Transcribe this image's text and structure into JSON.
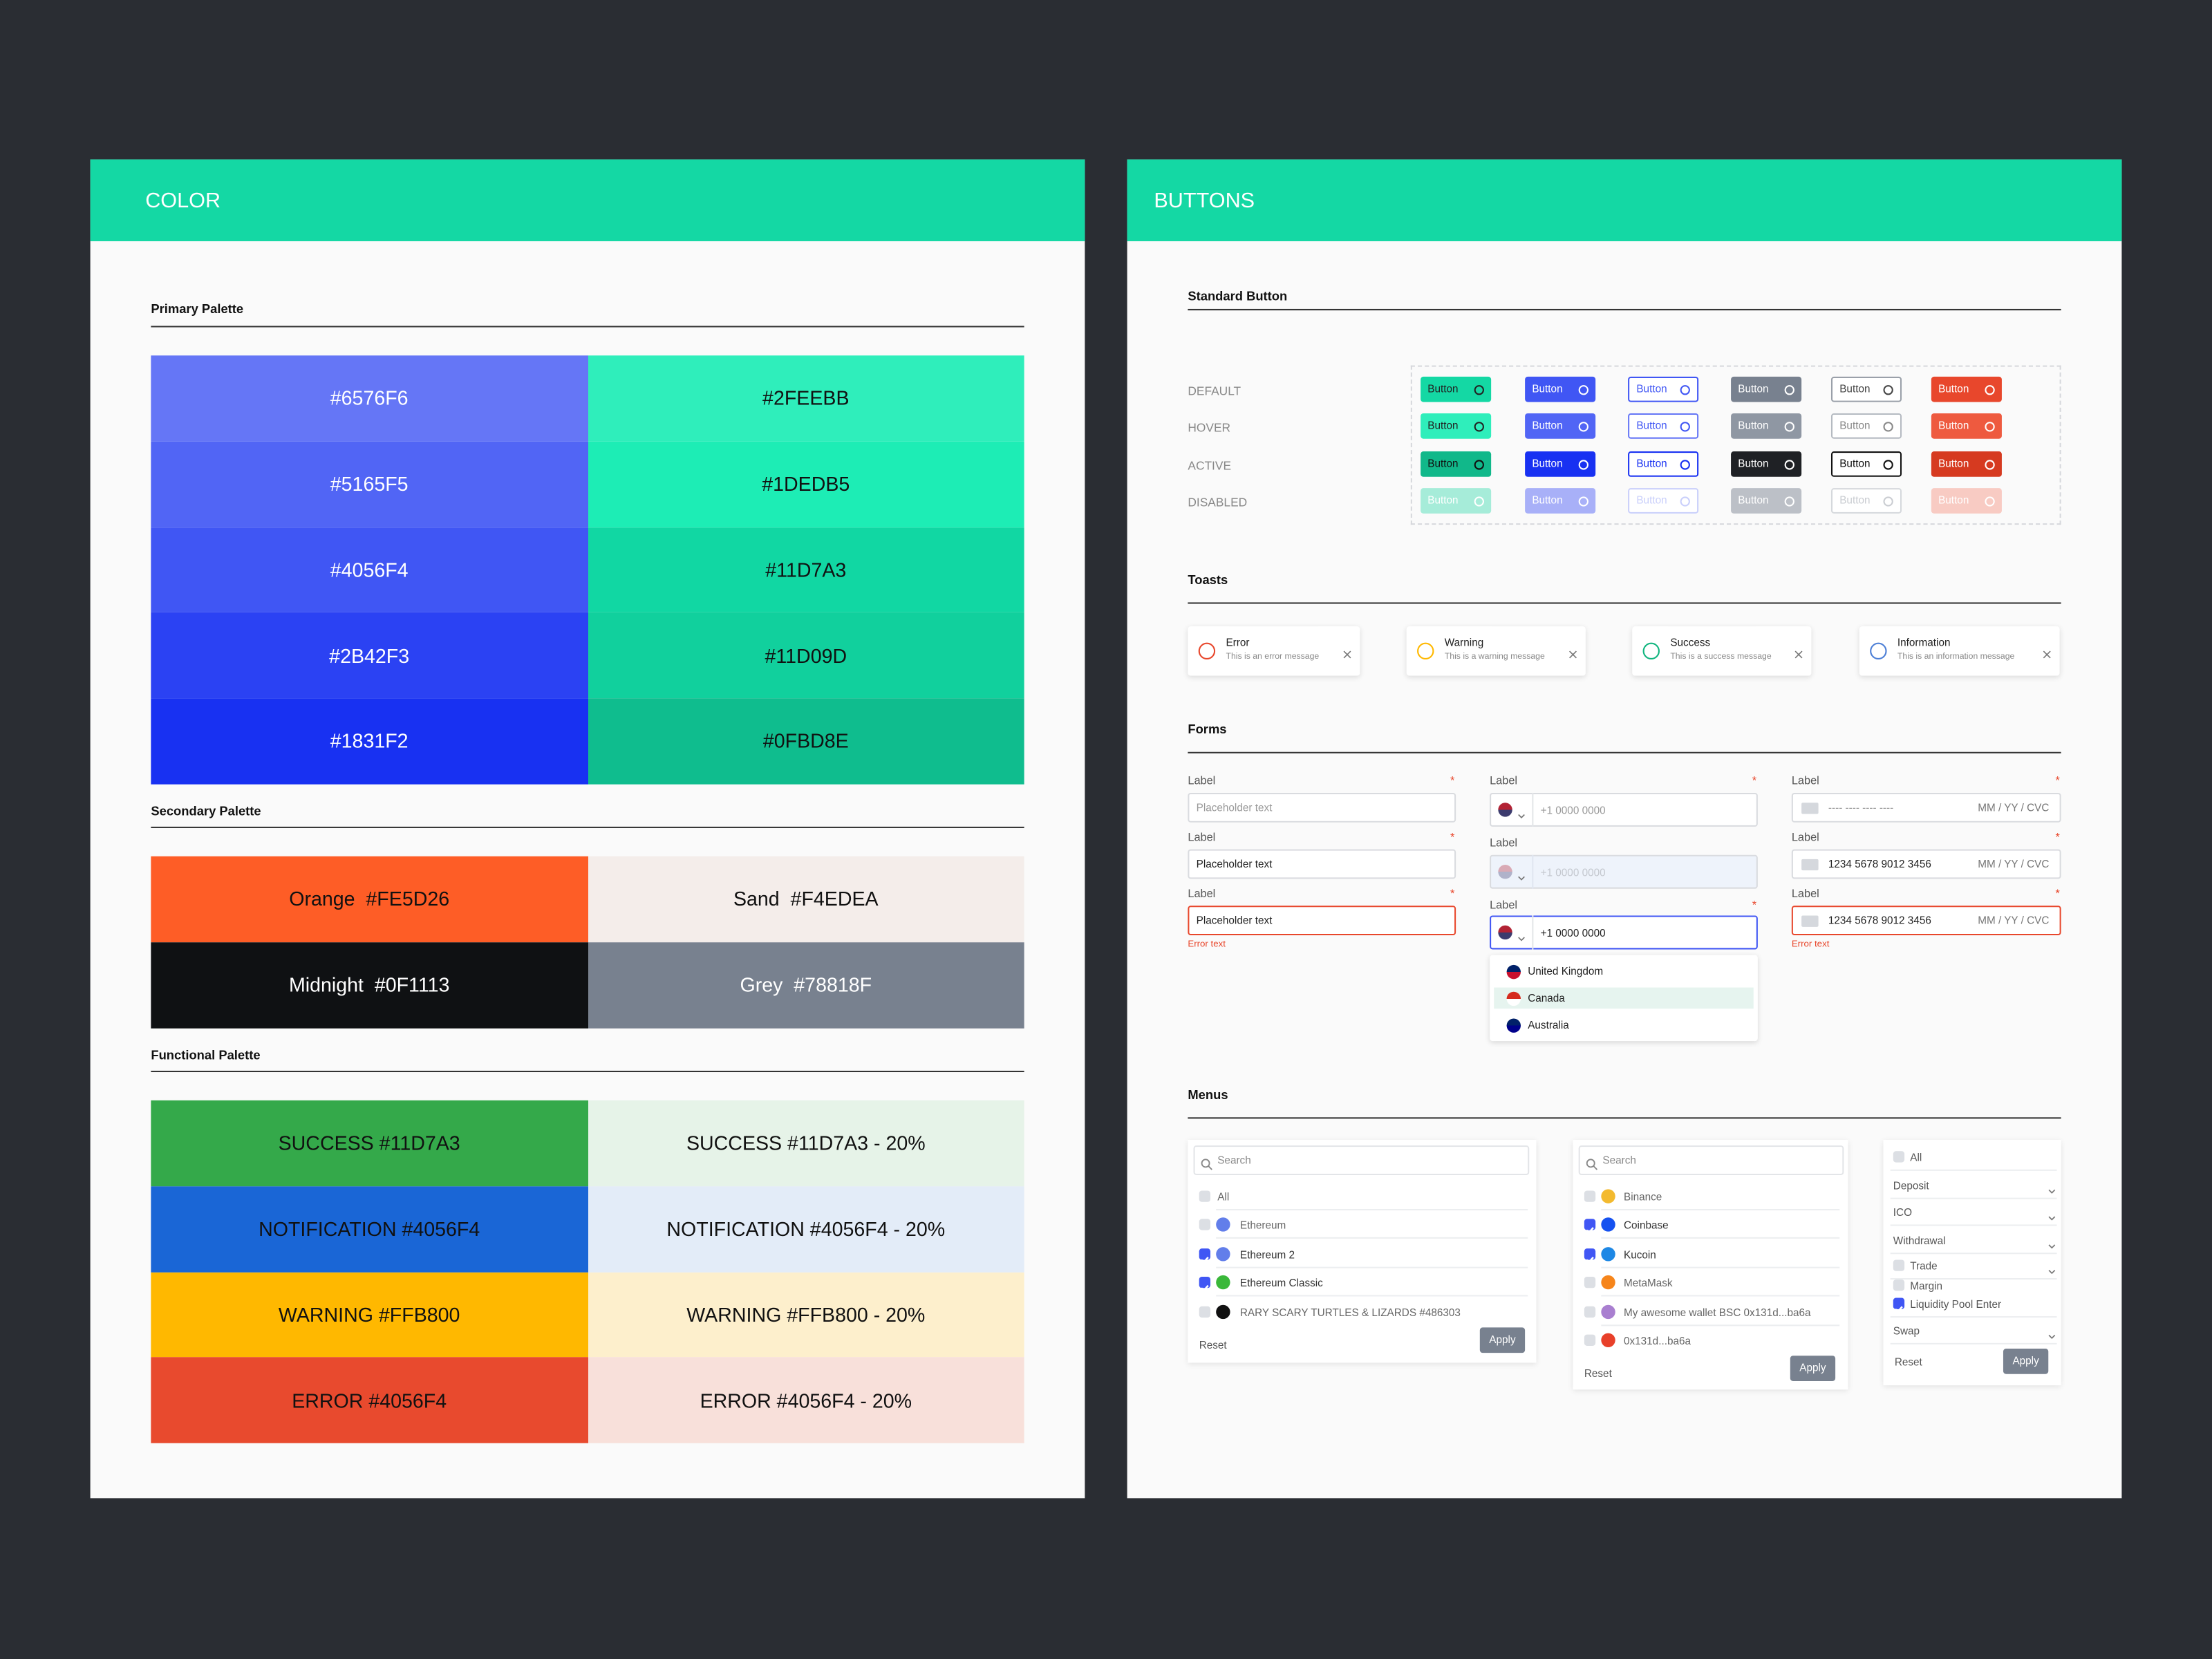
{
  "color_panel": {
    "title": "COLOR",
    "sections": [
      {
        "heading": "Primary Palette",
        "swatches": [
          {
            "label": "#6576F6",
            "color": "#6576F6",
            "text_color": "#ffffff"
          },
          {
            "label": "#2FEEBB",
            "color": "#2FEEBB",
            "text_color": "#111111"
          },
          {
            "label": "#5165F5",
            "color": "#5165F5",
            "text_color": "#ffffff"
          },
          {
            "label": "#1DEDB5",
            "color": "#1DEDB5",
            "text_color": "#111111"
          },
          {
            "label": "#4056F4",
            "color": "#4056F4",
            "text_color": "#ffffff"
          },
          {
            "label": "#11D7A3",
            "color": "#11D7A3",
            "text_color": "#111111"
          },
          {
            "label": "#2B42F3",
            "color": "#2B42F3",
            "text_color": "#ffffff"
          },
          {
            "label": "#11D09D",
            "color": "#11D09D",
            "text_color": "#111111"
          },
          {
            "label": "#1831F2",
            "color": "#1831F2",
            "text_color": "#ffffff"
          },
          {
            "label": "#0FBD8E",
            "color": "#0FBD8E",
            "text_color": "#111111"
          }
        ]
      },
      {
        "heading": "Secondary Palette",
        "swatches": [
          {
            "label": "Orange  #FE5D26",
            "color": "#FE5D26",
            "text_color": "#111111"
          },
          {
            "label": "Sand  #F4EDEA",
            "color": "#F4EDEA",
            "text_color": "#111111"
          },
          {
            "label": "Midnight  #0F1113",
            "color": "#0F1113",
            "text_color": "#ffffff"
          },
          {
            "label": "Grey  #78818F",
            "color": "#78818F",
            "text_color": "#ffffff"
          }
        ]
      },
      {
        "heading": "Functional Palette",
        "swatches": [
          {
            "label": "SUCCESS #11D7A3",
            "color": "#34A94A",
            "text_color": "#111111"
          },
          {
            "label": "SUCCESS #11D7A3 - 20%",
            "color": "#E6F3E8",
            "text_color": "#111111"
          },
          {
            "label": "NOTIFICATION #4056F4",
            "color": "#1A66D6",
            "text_color": "#111111"
          },
          {
            "label": "NOTIFICATION #4056F4 - 20%",
            "color": "#E3ECF8",
            "text_color": "#111111"
          },
          {
            "label": "WARNING #FFB800",
            "color": "#FFB800",
            "text_color": "#111111"
          },
          {
            "label": "WARNING #FFB800 - 20%",
            "color": "#FDEFCC",
            "text_color": "#111111"
          },
          {
            "label": "ERROR #4056F4",
            "color": "#E84A2E",
            "text_color": "#111111"
          },
          {
            "label": "ERROR #4056F4 - 20%",
            "color": "#F8E0DA",
            "text_color": "#111111"
          }
        ]
      }
    ]
  },
  "buttons_panel": {
    "title": "BUTTONS",
    "standard": {
      "heading": "Standard Button",
      "states": [
        "DEFAULT",
        "HOVER",
        "ACTIVE",
        "DISABLED"
      ],
      "button_label": "Button"
    },
    "toasts": {
      "heading": "Toasts",
      "items": [
        {
          "title": "Error",
          "message": "This is an error message",
          "color": "#E8472C"
        },
        {
          "title": "Warning",
          "message": "This is a warning message",
          "color": "#FFB800"
        },
        {
          "title": "Success",
          "message": "This is a success message",
          "color": "#11B57F"
        },
        {
          "title": "Information",
          "message": "This is an information message",
          "color": "#4D7FD6"
        }
      ]
    },
    "forms": {
      "heading": "Forms",
      "required_mark": "*",
      "error_text": "Error text",
      "text_fields": [
        {
          "label": "Label",
          "placeholder": "Placeholder text",
          "required": true
        },
        {
          "label": "Label",
          "value": "Placeholder text",
          "required": true
        },
        {
          "label": "Label",
          "value": "Placeholder text",
          "required": true,
          "state": "error"
        }
      ],
      "phone_fields": [
        {
          "label": "Label",
          "placeholder": "+1 0000 0000",
          "required": true
        },
        {
          "label": "Label",
          "placeholder": "+1 0000 0000",
          "required": false,
          "state": "disabled"
        },
        {
          "label": "Label",
          "value": "+1 0000 0000",
          "required": true,
          "state": "focused"
        }
      ],
      "phone_options": [
        "United Kingdom",
        "Canada",
        "Australia"
      ],
      "selected_option": 1,
      "card_fields": [
        {
          "label": "Label",
          "placeholder": "---- ---- ---- ----",
          "expiry": "MM / YY / CVC",
          "required": true
        },
        {
          "label": "Label",
          "value": "1234 5678 9012 3456",
          "expiry": "MM / YY / CVC",
          "required": true
        },
        {
          "label": "Label",
          "value": "1234 5678 9012 3456",
          "expiry": "MM / YY / CVC",
          "required": true,
          "state": "error"
        }
      ]
    },
    "menus": {
      "heading": "Menus",
      "search": "Search",
      "reset": "Reset",
      "apply": "Apply",
      "lists": [
        {
          "items": [
            {
              "label": "All",
              "checked": false
            },
            {
              "label": "Ethereum",
              "checked": false,
              "icon_color": "#627EEA"
            },
            {
              "label": "Ethereum 2",
              "checked": true,
              "icon_color": "#627EEA"
            },
            {
              "label": "Ethereum Classic",
              "checked": true,
              "icon_color": "#3AB83A"
            },
            {
              "label": "RARY SCARY TURTLES & LIZARDS #486303",
              "checked": false,
              "icon_color": "#111111"
            }
          ]
        },
        {
          "items": [
            {
              "label": "Binance",
              "checked": false,
              "icon_color": "#F3BA2F"
            },
            {
              "label": "Coinbase",
              "checked": true,
              "icon_color": "#1652F0"
            },
            {
              "label": "Kucoin",
              "checked": true,
              "icon_color": "#1E88E5"
            },
            {
              "label": "MetaMask",
              "checked": false,
              "icon_color": "#F6851B"
            },
            {
              "label": "My awesome wallet BSC 0x131d...ba6a",
              "checked": false,
              "icon_color": "#A97FD0"
            },
            {
              "label": "0x131d...ba6a",
              "checked": false,
              "icon_color": "#E8402A"
            }
          ]
        }
      ],
      "filter": [
        {
          "label": "All",
          "kind": "checkbox",
          "checked": false
        },
        {
          "label": "Deposit",
          "kind": "select"
        },
        {
          "label": "ICO",
          "kind": "select"
        },
        {
          "label": "Withdrawal",
          "kind": "select"
        },
        {
          "label": "Trade",
          "kind": "checkbox-select",
          "checked": false
        },
        {
          "label": "Margin",
          "kind": "checkbox",
          "checked": false
        },
        {
          "label": "Liquidity Pool Enter",
          "kind": "checkbox",
          "checked": true
        },
        {
          "label": "Swap",
          "kind": "select"
        }
      ]
    }
  }
}
